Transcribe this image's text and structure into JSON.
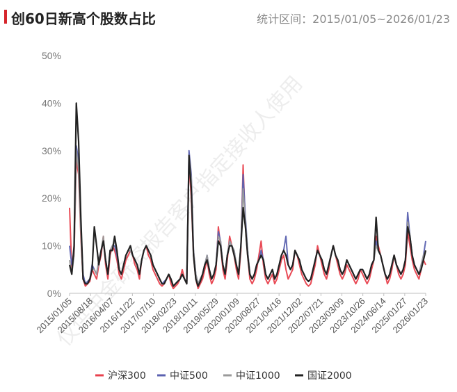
{
  "header": {
    "title": "创60日新高个股数占比",
    "range_text": "统计区间：2015/01/05~2026/01/23"
  },
  "watermark": "仅供中金研究报告客户指定接收人使用",
  "chart_data": {
    "type": "line",
    "title": "创60日新高个股数占比",
    "ylim": [
      0,
      50
    ],
    "y_unit": "%",
    "y_ticks": [
      "0%",
      "10%",
      "20%",
      "30%",
      "40%",
      "50%"
    ],
    "x_ticks": [
      "2015/01/05",
      "2015/08/18",
      "2016/04/07",
      "2016/11/22",
      "2017/07/10",
      "2018/02/23",
      "2018/10/11",
      "2019/05/29",
      "2020/01/09",
      "2020/08/27",
      "2021/04/16",
      "2021/12/02",
      "2022/07/21",
      "2023/03/09",
      "2023/10/26",
      "2024/06/14",
      "2025/01/27",
      "2026/01/23"
    ],
    "grid": false,
    "legend_position": "bottom",
    "series": [
      {
        "name": "沪深300",
        "color": "#e8414d",
        "values": [
          18,
          5,
          8,
          28,
          25,
          12,
          3,
          1.5,
          2,
          2.5,
          5,
          4,
          3,
          6,
          8,
          12,
          6,
          3,
          8,
          10,
          9,
          7,
          4,
          3,
          5,
          7,
          8,
          9,
          8,
          6,
          5,
          3,
          7,
          9,
          10,
          8,
          7,
          5,
          4,
          3,
          2,
          1.5,
          2,
          3,
          4,
          2,
          1,
          1.5,
          2,
          3,
          5,
          3,
          2,
          28,
          20,
          8,
          3,
          1,
          2,
          3,
          5,
          7,
          4,
          2,
          3,
          5,
          14,
          10,
          5,
          3,
          7,
          12,
          10,
          8,
          5,
          3,
          9,
          27,
          14,
          8,
          3,
          2,
          3,
          5,
          8,
          11,
          6,
          3,
          2,
          3,
          4,
          2,
          3,
          5,
          7,
          8,
          5,
          3,
          4,
          5,
          9,
          8,
          6,
          4,
          3,
          2,
          1.5,
          2,
          4,
          6,
          10,
          8,
          6,
          4,
          3,
          5,
          8,
          10,
          8,
          6,
          4,
          3,
          4,
          6,
          5,
          4,
          3,
          2,
          3,
          5,
          4,
          3,
          2,
          3,
          5,
          7,
          12,
          10,
          8,
          6,
          4,
          2,
          3,
          5,
          8,
          6,
          4,
          3,
          4,
          6,
          13,
          10,
          7,
          5,
          4,
          3,
          5,
          7,
          6
        ]
      },
      {
        "name": "中证500",
        "color": "#5b62b0",
        "values": [
          10,
          6,
          9,
          31,
          28,
          14,
          4,
          2,
          2.5,
          3,
          6,
          5,
          4,
          7,
          9,
          11,
          7,
          4,
          9,
          10,
          10,
          8,
          5,
          4,
          6,
          8,
          9,
          9,
          8,
          7,
          6,
          4,
          7,
          9,
          10,
          9,
          8,
          6,
          5,
          4,
          3,
          2,
          2.5,
          3,
          4,
          3,
          1.5,
          2,
          2.5,
          3,
          4,
          3,
          2,
          30,
          25,
          9,
          4,
          2,
          3,
          4,
          6,
          8,
          5,
          3,
          4,
          6,
          13,
          11,
          6,
          4,
          8,
          11,
          10,
          9,
          6,
          4,
          10,
          25,
          16,
          9,
          4,
          3,
          4,
          6,
          7,
          9,
          7,
          4,
          3,
          4,
          5,
          3,
          4,
          6,
          8,
          9,
          12,
          6,
          5,
          6,
          9,
          8,
          7,
          5,
          4,
          3,
          2.5,
          3,
          5,
          7,
          9,
          8,
          7,
          5,
          4,
          6,
          8,
          10,
          8,
          7,
          5,
          4,
          5,
          7,
          6,
          5,
          4,
          3,
          4,
          5,
          5,
          4,
          3,
          4,
          6,
          7,
          11,
          9,
          8,
          6,
          4,
          3,
          4,
          6,
          8,
          6,
          5,
          4,
          5,
          7,
          17,
          12,
          8,
          6,
          5,
          4,
          6,
          8,
          11
        ]
      },
      {
        "name": "中证1000",
        "color": "#9a9a9a",
        "values": [
          7,
          4,
          8,
          30,
          26,
          13,
          3,
          2,
          2,
          3,
          5,
          5,
          4,
          7,
          9,
          12,
          7,
          4,
          9,
          10,
          11,
          9,
          5,
          4,
          6,
          8,
          9,
          9,
          8,
          7,
          6,
          4,
          7,
          9,
          10,
          9,
          8,
          6,
          5,
          4,
          3,
          2,
          2,
          3,
          4,
          3,
          1.5,
          2,
          2.5,
          3,
          4,
          3,
          2,
          29,
          24,
          9,
          4,
          2,
          3,
          4,
          6,
          8,
          5,
          3,
          4,
          6,
          12,
          11,
          6,
          4,
          8,
          11,
          10,
          9,
          6,
          4,
          10,
          22,
          15,
          9,
          4,
          3,
          4,
          6,
          7,
          8,
          7,
          4,
          3,
          4,
          5,
          3,
          4,
          6,
          8,
          9,
          8,
          6,
          5,
          6,
          9,
          8,
          7,
          5,
          4,
          3,
          2.5,
          3,
          5,
          7,
          9,
          8,
          7,
          5,
          4,
          6,
          8,
          10,
          8,
          7,
          5,
          4,
          5,
          7,
          6,
          5,
          4,
          3,
          4,
          5,
          5,
          4,
          3,
          4,
          6,
          7,
          10,
          9,
          8,
          6,
          4,
          3,
          4,
          6,
          8,
          6,
          5,
          4,
          5,
          7,
          15,
          12,
          8,
          6,
          5,
          4,
          6,
          8,
          9
        ]
      },
      {
        "name": "国证2000",
        "color": "#222222",
        "values": [
          6,
          4,
          10,
          40,
          32,
          16,
          3,
          2,
          2,
          3,
          5,
          14,
          10,
          6,
          9,
          11,
          7,
          4,
          9,
          9,
          12,
          9,
          5,
          4,
          6,
          8,
          9,
          10,
          8,
          7,
          6,
          4,
          7,
          9,
          10,
          9,
          8,
          6,
          5,
          4,
          3,
          2,
          2,
          3,
          4,
          3,
          1.5,
          2,
          2.5,
          3,
          4,
          3,
          2,
          29,
          22,
          8,
          3,
          1.5,
          2.5,
          4,
          6,
          7,
          5,
          3,
          4,
          6,
          11,
          10,
          6,
          4,
          8,
          10,
          10,
          8,
          6,
          4,
          10,
          18,
          14,
          8,
          4,
          3,
          4,
          6,
          7,
          8,
          7,
          4,
          3,
          4,
          5,
          3,
          4,
          6,
          8,
          9,
          8,
          6,
          5,
          6,
          9,
          8,
          7,
          5,
          4,
          3,
          2.5,
          3,
          5,
          7,
          9,
          8,
          7,
          5,
          4,
          6,
          8,
          10,
          8,
          7,
          5,
          4,
          5,
          7,
          6,
          5,
          4,
          3,
          4,
          5,
          5,
          4,
          3,
          4,
          6,
          7,
          16,
          9,
          8,
          6,
          4,
          3,
          4,
          6,
          8,
          6,
          5,
          4,
          5,
          7,
          14,
          12,
          8,
          6,
          5,
          4,
          5,
          7,
          9
        ]
      }
    ]
  }
}
